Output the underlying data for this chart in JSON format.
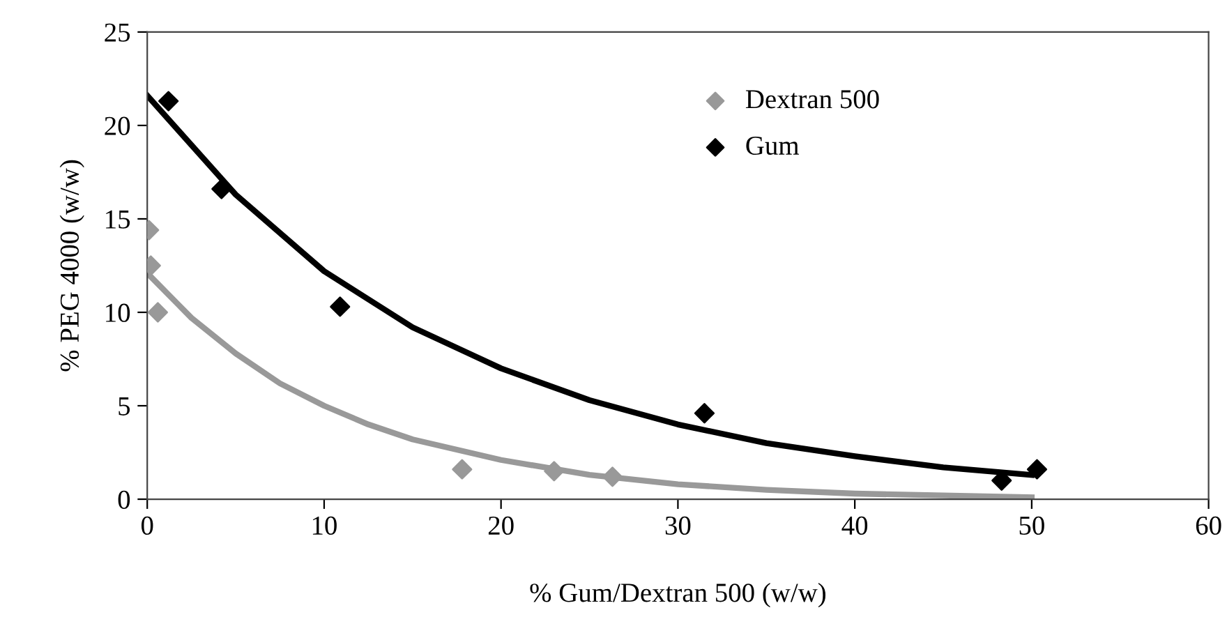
{
  "chart_data": {
    "type": "scatter",
    "xlabel": "% Gum/Dextran 500 (w/w)",
    "ylabel": "% PEG 4000 (w/w)",
    "xlim": [
      0,
      60
    ],
    "xticks": [
      0,
      10,
      20,
      30,
      40,
      50,
      60
    ],
    "ylim": [
      0,
      25
    ],
    "yticks": [
      0,
      5,
      10,
      15,
      20,
      25
    ],
    "legend": "top",
    "grid": false,
    "series": [
      {
        "name": "Dextran 500",
        "marker": "diamond",
        "color": "#999999",
        "x": [
          0.1,
          0.2,
          0.6,
          17.8,
          23,
          26.3
        ],
        "values": [
          14.4,
          12.5,
          10.0,
          1.6,
          1.5,
          1.2
        ]
      },
      {
        "name": "Gum",
        "marker": "diamond",
        "color": "#000000",
        "x": [
          1.2,
          4.2,
          10.9,
          31.5,
          48.3,
          50.3
        ],
        "values": [
          21.3,
          16.6,
          10.3,
          4.6,
          1.0,
          1.6
        ]
      },
      {
        "type": "line",
        "marker": "none",
        "color": "#999999",
        "x": [
          0,
          2.5,
          5,
          7.5,
          10,
          12.5,
          15,
          20,
          25,
          30,
          35,
          40,
          45,
          50
        ],
        "values": [
          12.1,
          9.7,
          7.8,
          6.2,
          5.0,
          4.0,
          3.2,
          2.1,
          1.3,
          0.8,
          0.5,
          0.3,
          0.2,
          0.1
        ]
      },
      {
        "type": "line",
        "marker": "none",
        "color": "#000000",
        "x": [
          0,
          5,
          10,
          15,
          20,
          25,
          30,
          35,
          40,
          45,
          50
        ],
        "values": [
          21.6,
          16.3,
          12.2,
          9.2,
          7.0,
          5.3,
          4.0,
          3.0,
          2.3,
          1.7,
          1.3
        ]
      }
    ]
  }
}
